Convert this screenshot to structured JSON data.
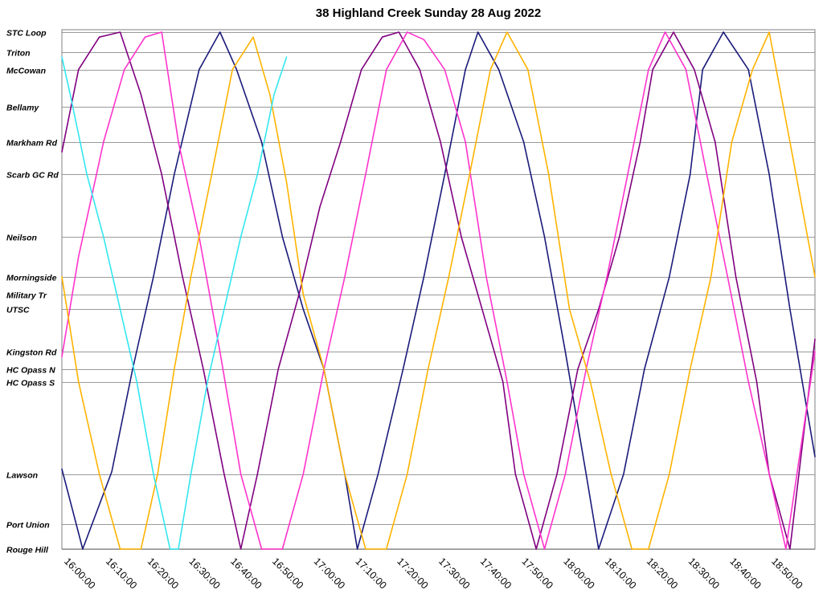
{
  "chart_data": {
    "type": "line",
    "title": "38 Highland Creek Sunday 28 Aug 2022",
    "xlabel": "",
    "ylabel": "",
    "xlim": [
      "15:59:00",
      "19:00:00"
    ],
    "grid": true,
    "legend": "none",
    "x_ticks": [
      "16:00:00",
      "16:10:00",
      "16:20:00",
      "16:30:00",
      "16:40:00",
      "16:50:00",
      "17:00:00",
      "17:10:00",
      "17:20:00",
      "17:30:00",
      "17:40:00",
      "17:50:00",
      "18:00:00",
      "18:10:00",
      "18:20:00",
      "18:30:00",
      "18:40:00",
      "18:50:00"
    ],
    "stops": [
      {
        "name": "STC Loop",
        "pos": 0
      },
      {
        "name": "Triton",
        "pos": 0.8
      },
      {
        "name": "McCowan",
        "pos": 1.5
      },
      {
        "name": "Bellamy",
        "pos": 3.0
      },
      {
        "name": "Markham Rd",
        "pos": 4.4
      },
      {
        "name": "Scarb GC Rd",
        "pos": 5.7
      },
      {
        "name": "Neilson",
        "pos": 8.2
      },
      {
        "name": "Morningside",
        "pos": 9.8
      },
      {
        "name": "Military Tr",
        "pos": 10.5
      },
      {
        "name": "UTSC",
        "pos": 11.1
      },
      {
        "name": "Kingston Rd",
        "pos": 12.8
      },
      {
        "name": "HC Opass N",
        "pos": 13.5
      },
      {
        "name": "HC Opass S",
        "pos": 14.0
      },
      {
        "name": "Lawson",
        "pos": 17.7
      },
      {
        "name": "Port Union",
        "pos": 19.7
      },
      {
        "name": "Rouge Hill",
        "pos": 20.7
      }
    ],
    "series": [
      {
        "color": "#1a1a7a",
        "x": [
          "15:59",
          "16:04",
          "16:11",
          "16:16",
          "16:21",
          "16:26",
          "16:32",
          "16:37",
          "16:41",
          "16:47",
          "16:52",
          "16:57",
          "17:02",
          "17:07",
          "17:10",
          "17:15",
          "17:21",
          "17:26",
          "17:31",
          "17:36",
          "17:39",
          "17:44",
          "17:50",
          "17:55",
          "18:00",
          "18:05",
          "18:08",
          "18:14",
          "18:19",
          "18:25",
          "18:30",
          "18:33",
          "18:38",
          "18:44",
          "18:49",
          "18:54",
          "19:00"
        ],
        "y": [
          17.5,
          20.7,
          17.6,
          13.5,
          9.8,
          5.7,
          1.5,
          0.0,
          1.5,
          4.4,
          8.2,
          11.1,
          13.5,
          17.7,
          20.7,
          17.7,
          13.5,
          9.8,
          5.7,
          1.5,
          0.0,
          1.5,
          4.4,
          8.2,
          12.8,
          17.7,
          20.7,
          17.7,
          13.5,
          9.8,
          5.7,
          1.5,
          0.0,
          1.5,
          5.7,
          11.1,
          17.0
        ]
      },
      {
        "color": "#800080",
        "x": [
          "15:59",
          "16:03",
          "16:08",
          "16:13",
          "16:18",
          "16:23",
          "16:28",
          "16:33",
          "16:38",
          "16:42",
          "16:46",
          "16:51",
          "16:56",
          "17:01",
          "17:06",
          "17:11",
          "17:16",
          "17:20",
          "17:25",
          "17:30",
          "17:35",
          "17:40",
          "17:45",
          "17:48",
          "17:53",
          "17:58",
          "18:03",
          "18:08",
          "18:13",
          "18:18",
          "18:21",
          "18:26",
          "18:31",
          "18:36",
          "18:41",
          "18:46",
          "18:49",
          "18:54",
          "19:00"
        ],
        "y": [
          4.8,
          1.5,
          0.2,
          0.0,
          2.5,
          5.7,
          9.8,
          13.5,
          17.7,
          20.7,
          17.7,
          13.5,
          10.5,
          7.0,
          4.4,
          1.5,
          0.2,
          0.0,
          1.5,
          4.4,
          8.2,
          11.1,
          14.0,
          17.7,
          20.7,
          17.7,
          13.5,
          11.1,
          8.2,
          4.4,
          1.5,
          0.0,
          1.5,
          4.4,
          9.8,
          14.0,
          17.7,
          20.7,
          12.3
        ]
      },
      {
        "color": "#ff33cc",
        "x": [
          "15:59",
          "16:03",
          "16:09",
          "16:14",
          "16:19",
          "16:23",
          "16:27",
          "16:32",
          "16:37",
          "16:42",
          "16:47",
          "16:52",
          "16:57",
          "17:02",
          "17:07",
          "17:12",
          "17:17",
          "17:22",
          "17:26",
          "17:31",
          "17:36",
          "17:41",
          "17:46",
          "17:50",
          "17:55",
          "18:00",
          "18:05",
          "18:10",
          "18:15",
          "18:20",
          "18:24",
          "18:29",
          "18:34",
          "18:39",
          "18:44",
          "18:49",
          "18:53",
          "19:00"
        ],
        "y": [
          13.0,
          9.0,
          4.4,
          1.5,
          0.2,
          0.0,
          4.4,
          8.2,
          12.8,
          17.7,
          20.7,
          20.7,
          17.7,
          13.5,
          9.8,
          5.7,
          1.5,
          0.0,
          0.3,
          1.5,
          4.4,
          9.8,
          14.0,
          17.7,
          20.7,
          17.7,
          13.5,
          9.8,
          5.7,
          1.5,
          0.0,
          1.5,
          5.7,
          9.8,
          14.0,
          17.7,
          20.7,
          12.8
        ]
      },
      {
        "color": "#ffb300",
        "x": [
          "15:59",
          "16:03",
          "16:08",
          "16:13",
          "16:18",
          "16:22",
          "16:26",
          "16:30",
          "16:35",
          "16:40",
          "16:45",
          "16:49",
          "16:53",
          "16:57",
          "17:02",
          "17:07",
          "17:12",
          "17:17",
          "17:22",
          "17:27",
          "17:32",
          "17:37",
          "17:42",
          "17:46",
          "17:51",
          "17:56",
          "18:01",
          "18:06",
          "18:11",
          "18:16",
          "18:20",
          "18:25",
          "18:30",
          "18:35",
          "18:40",
          "18:45",
          "18:49",
          "18:54",
          "19:00"
        ],
        "y": [
          9.8,
          14.0,
          17.7,
          20.7,
          20.7,
          17.7,
          13.5,
          9.8,
          5.7,
          1.5,
          0.2,
          2.5,
          6.0,
          10.5,
          13.5,
          17.7,
          20.7,
          20.7,
          17.7,
          13.5,
          9.8,
          5.7,
          1.5,
          0.0,
          1.5,
          5.7,
          11.1,
          14.0,
          17.7,
          20.7,
          20.7,
          17.7,
          13.5,
          9.8,
          4.4,
          1.5,
          0.0,
          4.4,
          9.8
        ]
      },
      {
        "color": "#33e6f0",
        "x": [
          "15:59",
          "16:01",
          "16:05",
          "16:09",
          "16:13",
          "16:17",
          "16:21",
          "16:25",
          "16:27",
          "16:30",
          "16:34",
          "16:38",
          "16:42",
          "16:46",
          "16:50",
          "16:53"
        ],
        "y": [
          1.0,
          2.5,
          5.7,
          8.2,
          11.1,
          14.0,
          17.7,
          20.7,
          20.7,
          17.7,
          14.0,
          11.1,
          8.2,
          5.7,
          2.5,
          1.0
        ]
      }
    ]
  }
}
